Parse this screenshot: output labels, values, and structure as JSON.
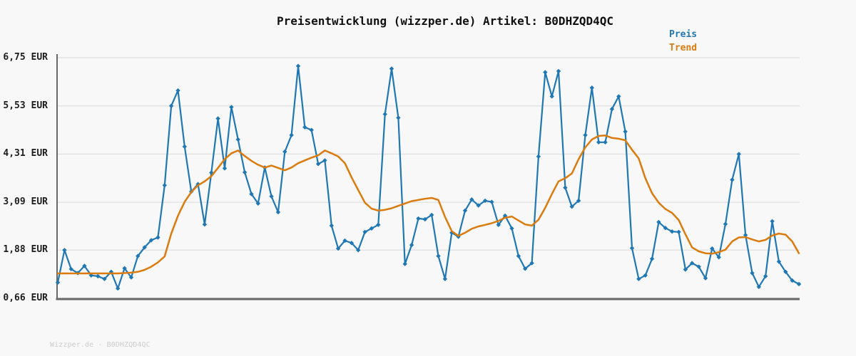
{
  "title": "Preisentwicklung (wizzper.de) Artikel: B0DHZQD4QC",
  "legend": {
    "items": [
      {
        "label": "Preis",
        "color": "#1f77b4"
      },
      {
        "label": "Trend",
        "color": "#dc7b0d"
      }
    ]
  },
  "footer": {
    "watermark": "Wizzper.de - B0DHZQD4QC"
  },
  "colors": {
    "background": "#f8f8f8",
    "grid": "#e3e3e3",
    "axis": "#686868",
    "tick_text": "#1c1c1c",
    "watermark": "#cbcbcb",
    "price_line": "#1f77b4",
    "trend_line": "#dc7b0d"
  },
  "chart_data": {
    "type": "line",
    "title": "Preisentwicklung (wizzper.de) Artikel: B0DHZQD4QC",
    "xlabel": "",
    "ylabel": "EUR",
    "ylim": [
      0.66,
      6.75
    ],
    "grid": "horizontal",
    "legend_position": "top-right",
    "x_tick_labels_visible": false,
    "y_ticks": [
      {
        "label": "6,75 EUR",
        "value": 6.75
      },
      {
        "label": "5,53 EUR",
        "value": 5.53
      },
      {
        "label": "4,31 EUR",
        "value": 4.31
      },
      {
        "label": "3,09 EUR",
        "value": 3.09
      },
      {
        "label": "1,88 EUR",
        "value": 1.88
      },
      {
        "label": "0,66 EUR",
        "value": 0.66
      }
    ],
    "series": [
      {
        "name": "Preis",
        "color": "#1f77b4",
        "markers": "diamond",
        "values": [
          1.06,
          1.88,
          1.4,
          1.3,
          1.48,
          1.24,
          1.22,
          1.15,
          1.33,
          0.91,
          1.42,
          1.19,
          1.73,
          1.95,
          2.13,
          2.2,
          3.52,
          5.53,
          5.92,
          4.5,
          3.36,
          3.55,
          2.53,
          3.84,
          5.21,
          3.95,
          5.5,
          4.68,
          3.85,
          3.3,
          3.06,
          3.97,
          3.24,
          2.84,
          4.37,
          4.79,
          6.54,
          4.99,
          4.92,
          4.06,
          4.15,
          2.5,
          1.92,
          2.12,
          2.06,
          1.88,
          2.34,
          2.43,
          2.52,
          5.32,
          6.47,
          5.23,
          1.53,
          2.01,
          2.68,
          2.66,
          2.77,
          1.73,
          1.15,
          2.32,
          2.22,
          2.88,
          3.16,
          3.01,
          3.13,
          3.1,
          2.52,
          2.75,
          2.43,
          1.73,
          1.41,
          1.55,
          4.25,
          6.38,
          5.77,
          6.41,
          3.46,
          2.98,
          3.13,
          4.79,
          5.99,
          4.61,
          4.61,
          5.45,
          5.77,
          4.88,
          1.93,
          1.15,
          1.24,
          1.66,
          2.59,
          2.44,
          2.35,
          2.34,
          1.39,
          1.55,
          1.46,
          1.17,
          1.92,
          1.7,
          2.54,
          3.66,
          4.31,
          2.26,
          1.3,
          0.95,
          1.22,
          2.61,
          1.59,
          1.33,
          1.11,
          1.02
        ]
      },
      {
        "name": "Trend",
        "color": "#dc7b0d",
        "markers": "none",
        "values": [
          1.29,
          1.29,
          1.29,
          1.29,
          1.29,
          1.29,
          1.29,
          1.29,
          1.29,
          1.29,
          1.3,
          1.31,
          1.33,
          1.38,
          1.46,
          1.57,
          1.72,
          2.3,
          2.75,
          3.1,
          3.35,
          3.52,
          3.62,
          3.75,
          3.96,
          4.18,
          4.33,
          4.4,
          4.26,
          4.14,
          4.04,
          3.97,
          4.02,
          3.96,
          3.9,
          3.97,
          4.08,
          4.15,
          4.22,
          4.28,
          4.4,
          4.33,
          4.25,
          4.08,
          3.72,
          3.4,
          3.08,
          2.93,
          2.88,
          2.9,
          2.94,
          3.0,
          3.06,
          3.12,
          3.15,
          3.18,
          3.2,
          3.15,
          2.72,
          2.36,
          2.24,
          2.32,
          2.42,
          2.48,
          2.52,
          2.56,
          2.62,
          2.7,
          2.73,
          2.63,
          2.53,
          2.5,
          2.65,
          2.95,
          3.3,
          3.62,
          3.7,
          3.82,
          4.18,
          4.48,
          4.68,
          4.77,
          4.78,
          4.72,
          4.7,
          4.66,
          4.42,
          4.2,
          3.7,
          3.32,
          3.08,
          2.92,
          2.82,
          2.64,
          2.28,
          1.95,
          1.85,
          1.8,
          1.79,
          1.83,
          1.89,
          2.1,
          2.2,
          2.21,
          2.15,
          2.1,
          2.14,
          2.25,
          2.3,
          2.27,
          2.1,
          1.8
        ]
      }
    ]
  }
}
